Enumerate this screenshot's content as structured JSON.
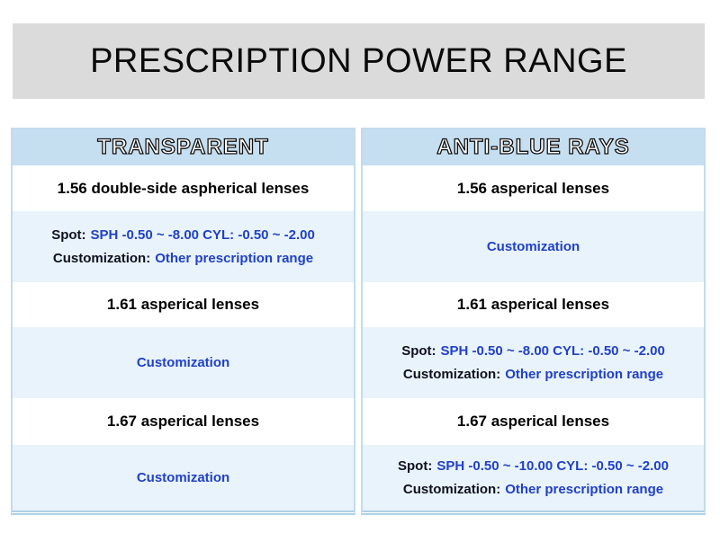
{
  "title": {
    "text": "PRESCRIPTION POWER RANGE"
  },
  "colors": {
    "title_bar_bg": "#dbdbdb",
    "header_bg": "#c5dff1",
    "alt_row_bg": "#e9f3fb",
    "table_border": "#c2dcee",
    "blue_text": "#2141c8",
    "dark_label": "#10101e"
  },
  "table": {
    "columns": [
      {
        "header": "TRANSPARENT",
        "rows": [
          {
            "type": "product",
            "text": "1.56 double-side aspherical lenses"
          },
          {
            "type": "spec",
            "spot_label": "Spot:",
            "spot_value": "SPH -0.50 ~ -8.00 CYL: -0.50 ~ -2.00",
            "custom_label": "Customization:",
            "custom_value": "Other prescription range"
          },
          {
            "type": "product",
            "text": "1.61 asperical lenses"
          },
          {
            "type": "custom",
            "text": "Customization"
          },
          {
            "type": "product",
            "text": "1.67 asperical lenses"
          },
          {
            "type": "custom",
            "text": "Customization"
          }
        ]
      },
      {
        "header": "ANTI-BLUE RAYS",
        "rows": [
          {
            "type": "product",
            "text": "1.56 asperical lenses"
          },
          {
            "type": "custom",
            "text": "Customization"
          },
          {
            "type": "product",
            "text": "1.61 asperical lenses"
          },
          {
            "type": "spec",
            "spot_label": "Spot:",
            "spot_value": "SPH -0.50 ~ -8.00 CYL: -0.50 ~ -2.00",
            "custom_label": "Customization:",
            "custom_value": "Other prescription range"
          },
          {
            "type": "product",
            "text": "1.67 asperical lenses"
          },
          {
            "type": "spec",
            "spot_label": "Spot:",
            "spot_value": "SPH -0.50 ~ -10.00 CYL: -0.50 ~ -2.00",
            "custom_label": "Customization:",
            "custom_value": "Other prescription range"
          }
        ]
      }
    ]
  }
}
